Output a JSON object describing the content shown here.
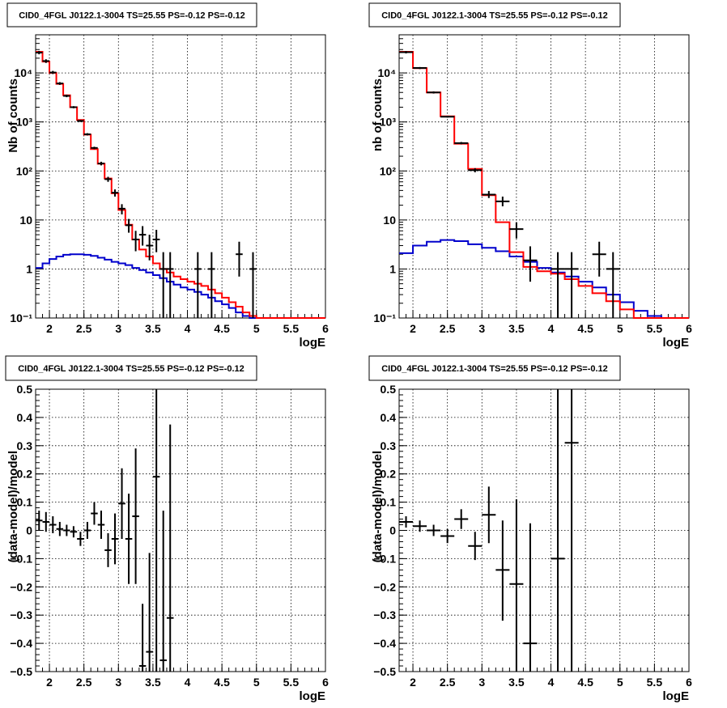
{
  "chart_data": [
    {
      "type": "step-histogram",
      "title": "CID0_4FGL J0122.1-3004 TS=25.55 PS=-0.12 PS=-0.12",
      "xlabel": "logE",
      "ylabel": "Nb of counts",
      "xlim": [
        1.8,
        6.0
      ],
      "ylim": [
        0.1,
        60000
      ],
      "yscale": "log",
      "x_ticks": [
        "2",
        "2.5",
        "3",
        "3.5",
        "4",
        "4.5",
        "5",
        "5.5",
        "6"
      ],
      "y_ticks": [
        "10⁻¹",
        "1",
        "10",
        "10²",
        "10³",
        "10⁴"
      ],
      "y_tick_values": [
        0.1,
        1,
        10,
        100,
        1000,
        10000
      ],
      "grid": true,
      "model_total": {
        "color": "#ff0000",
        "edges": [
          1.8,
          1.9,
          2.0,
          2.1,
          2.2,
          2.3,
          2.4,
          2.5,
          2.6,
          2.7,
          2.8,
          2.9,
          3.0,
          3.1,
          3.2,
          3.3,
          3.4,
          3.5,
          3.6,
          3.7,
          3.8,
          3.9,
          4.0,
          4.1,
          4.2,
          4.3,
          4.4,
          4.5,
          4.6,
          4.7,
          4.8,
          4.9,
          5.0,
          5.1,
          5.2,
          5.3,
          5.4,
          5.5,
          5.6,
          5.7,
          5.8,
          5.9,
          6.0
        ],
        "values": [
          27000,
          17000,
          10000,
          6000,
          3500,
          2000,
          1100,
          550,
          280,
          140,
          70,
          35,
          16,
          8,
          4,
          2.5,
          1.8,
          1.3,
          1.0,
          0.85,
          0.7,
          0.62,
          0.55,
          0.5,
          0.45,
          0.38,
          0.32,
          0.26,
          0.21,
          0.17,
          0.13,
          0.11,
          0.1,
          0.1,
          0.1,
          0.1,
          0.1,
          0.1,
          0.1,
          0.1,
          0.1,
          0.1
        ]
      },
      "model_source": {
        "color": "#0000cc",
        "edges": [
          1.8,
          1.9,
          2.0,
          2.1,
          2.2,
          2.3,
          2.4,
          2.5,
          2.6,
          2.7,
          2.8,
          2.9,
          3.0,
          3.1,
          3.2,
          3.3,
          3.4,
          3.5,
          3.6,
          3.7,
          3.8,
          3.9,
          4.0,
          4.1,
          4.2,
          4.3,
          4.4,
          4.5,
          4.6,
          4.7,
          4.8,
          4.9,
          5.0,
          5.1,
          5.2,
          5.3,
          5.4,
          5.5,
          5.6,
          5.7,
          5.8,
          5.9,
          6.0
        ],
        "values": [
          1.05,
          1.3,
          1.6,
          1.8,
          1.95,
          2.0,
          2.0,
          1.95,
          1.85,
          1.7,
          1.55,
          1.4,
          1.3,
          1.2,
          1.05,
          0.95,
          0.85,
          0.75,
          0.65,
          0.55,
          0.48,
          0.42,
          0.38,
          0.34,
          0.3,
          0.26,
          0.22,
          0.19,
          0.16,
          0.13,
          0.11,
          0.1,
          0.1,
          0.1,
          0.1,
          0.1,
          0.1,
          0.1,
          0.1,
          0.1,
          0.1,
          0.1
        ]
      },
      "data_points": [
        {
          "x": 1.85,
          "y": 26000,
          "ylo": 24000,
          "yhi": 28000
        },
        {
          "x": 1.95,
          "y": 17500,
          "ylo": 16000,
          "yhi": 19000
        },
        {
          "x": 2.05,
          "y": 10200,
          "ylo": 9500,
          "yhi": 11000
        },
        {
          "x": 2.15,
          "y": 6100,
          "ylo": 5700,
          "yhi": 6500
        },
        {
          "x": 2.25,
          "y": 3400,
          "ylo": 3200,
          "yhi": 3600
        },
        {
          "x": 2.35,
          "y": 2000,
          "ylo": 1900,
          "yhi": 2100
        },
        {
          "x": 2.45,
          "y": 1050,
          "ylo": 1000,
          "yhi": 1100
        },
        {
          "x": 2.55,
          "y": 560,
          "ylo": 530,
          "yhi": 590
        },
        {
          "x": 2.65,
          "y": 295,
          "ylo": 278,
          "yhi": 312
        },
        {
          "x": 2.75,
          "y": 142,
          "ylo": 130,
          "yhi": 154
        },
        {
          "x": 2.85,
          "y": 68,
          "ylo": 60,
          "yhi": 76
        },
        {
          "x": 2.95,
          "y": 36,
          "ylo": 30,
          "yhi": 42
        },
        {
          "x": 3.05,
          "y": 17,
          "ylo": 13,
          "yhi": 21
        },
        {
          "x": 3.15,
          "y": 7.8,
          "ylo": 5.5,
          "yhi": 10.5
        },
        {
          "x": 3.25,
          "y": 4.0,
          "ylo": 2.3,
          "yhi": 6.0
        },
        {
          "x": 3.35,
          "y": 5.0,
          "ylo": 3.0,
          "yhi": 7.5
        },
        {
          "x": 3.45,
          "y": 3.0,
          "ylo": 1.5,
          "yhi": 5.0
        },
        {
          "x": 3.55,
          "y": 4.0,
          "ylo": 2.2,
          "yhi": 6.3
        },
        {
          "x": 3.65,
          "y": 1.0,
          "ylo": 0.1,
          "yhi": 2.2
        },
        {
          "x": 3.75,
          "y": 1.0,
          "ylo": 0.1,
          "yhi": 2.2
        },
        {
          "x": 4.15,
          "y": 1.0,
          "ylo": 0.1,
          "yhi": 2.2
        },
        {
          "x": 4.35,
          "y": 1.0,
          "ylo": 0.1,
          "yhi": 2.2
        },
        {
          "x": 4.75,
          "y": 2.0,
          "ylo": 0.7,
          "yhi": 3.6
        },
        {
          "x": 4.95,
          "y": 1.0,
          "ylo": 0.1,
          "yhi": 2.2
        }
      ]
    },
    {
      "type": "step-histogram",
      "title": "CID0_4FGL J0122.1-3004 TS=25.55 PS=-0.12 PS=-0.12",
      "xlabel": "logE",
      "ylabel": "nb of counts",
      "xlim": [
        1.8,
        6.0
      ],
      "ylim": [
        0.1,
        60000
      ],
      "yscale": "log",
      "x_ticks": [
        "2",
        "2.5",
        "3",
        "3.5",
        "4",
        "4.5",
        "5",
        "5.5",
        "6"
      ],
      "y_ticks": [
        "10⁻¹",
        "1",
        "10",
        "10²",
        "10³",
        "10⁴"
      ],
      "y_tick_values": [
        0.1,
        1,
        10,
        100,
        1000,
        10000
      ],
      "grid": true,
      "model_total": {
        "color": "#ff0000",
        "edges": [
          1.8,
          2.0,
          2.2,
          2.4,
          2.6,
          2.8,
          3.0,
          3.2,
          3.4,
          3.6,
          3.8,
          4.0,
          4.2,
          4.4,
          4.6,
          4.8,
          5.0,
          5.2,
          5.4,
          5.6,
          5.8,
          6.0
        ],
        "values": [
          27000,
          12500,
          4000,
          1300,
          360,
          110,
          32,
          9,
          2.2,
          1.1,
          0.9,
          0.8,
          0.62,
          0.45,
          0.32,
          0.22,
          0.15,
          0.1,
          0.1,
          0.1,
          0.1
        ]
      },
      "model_source": {
        "color": "#0000cc",
        "edges": [
          1.8,
          2.0,
          2.2,
          2.4,
          2.6,
          2.8,
          3.0,
          3.2,
          3.4,
          3.6,
          3.8,
          4.0,
          4.2,
          4.4,
          4.6,
          4.8,
          5.0,
          5.2,
          5.4,
          5.6,
          5.8,
          6.0
        ],
        "values": [
          2.1,
          3.0,
          3.6,
          3.9,
          3.7,
          3.2,
          2.7,
          2.3,
          1.8,
          1.4,
          1.05,
          0.85,
          0.7,
          0.55,
          0.42,
          0.3,
          0.21,
          0.14,
          0.11,
          0.1,
          0.1
        ]
      },
      "data_points": [
        {
          "x": 1.9,
          "y": 26500,
          "ylo": 25000,
          "yhi": 28000
        },
        {
          "x": 2.1,
          "y": 12600,
          "ylo": 12000,
          "yhi": 13200
        },
        {
          "x": 2.3,
          "y": 4000,
          "ylo": 3800,
          "yhi": 4200
        },
        {
          "x": 2.5,
          "y": 1280,
          "ylo": 1230,
          "yhi": 1330
        },
        {
          "x": 2.7,
          "y": 370,
          "ylo": 350,
          "yhi": 390
        },
        {
          "x": 2.9,
          "y": 104,
          "ylo": 94,
          "yhi": 114
        },
        {
          "x": 3.1,
          "y": 33,
          "ylo": 28,
          "yhi": 39
        },
        {
          "x": 3.3,
          "y": 24,
          "ylo": 19,
          "yhi": 30
        },
        {
          "x": 3.5,
          "y": 6.5,
          "ylo": 4.2,
          "yhi": 9.0
        },
        {
          "x": 3.7,
          "y": 1.5,
          "ylo": 0.55,
          "yhi": 2.9
        },
        {
          "x": 4.1,
          "y": 1.0,
          "ylo": 0.1,
          "yhi": 2.2
        },
        {
          "x": 4.3,
          "y": 1.0,
          "ylo": 0.1,
          "yhi": 2.2
        },
        {
          "x": 4.7,
          "y": 2.0,
          "ylo": 0.7,
          "yhi": 3.6
        },
        {
          "x": 4.9,
          "y": 1.0,
          "ylo": 0.1,
          "yhi": 2.2
        }
      ]
    },
    {
      "type": "scatter",
      "title": "CID0_4FGL J0122.1-3004 TS=25.55 PS=-0.12 PS=-0.12",
      "xlabel": "logE",
      "ylabel": "(data-model)/model",
      "xlim": [
        1.8,
        6.0
      ],
      "ylim": [
        -0.5,
        0.5
      ],
      "x_ticks": [
        "2",
        "2.5",
        "3",
        "3.5",
        "4",
        "4.5",
        "5",
        "5.5",
        "6"
      ],
      "y_ticks": [
        "−0.5",
        "−0.4",
        "−0.3",
        "−0.2",
        "−0.1",
        "0",
        "0.1",
        "0.2",
        "0.3",
        "0.4",
        "0.5"
      ],
      "y_tick_values": [
        -0.5,
        -0.4,
        -0.3,
        -0.2,
        -0.1,
        0,
        0.1,
        0.2,
        0.3,
        0.4,
        0.5
      ],
      "grid": true,
      "data_points": [
        {
          "x": 1.85,
          "y": 0.035,
          "ylo": 0.0,
          "yhi": 0.07
        },
        {
          "x": 1.95,
          "y": 0.03,
          "ylo": -0.005,
          "yhi": 0.065
        },
        {
          "x": 2.05,
          "y": 0.02,
          "ylo": -0.01,
          "yhi": 0.05
        },
        {
          "x": 2.15,
          "y": 0.005,
          "ylo": -0.02,
          "yhi": 0.03
        },
        {
          "x": 2.25,
          "y": 0.0,
          "ylo": -0.02,
          "yhi": 0.02
        },
        {
          "x": 2.35,
          "y": -0.005,
          "ylo": -0.025,
          "yhi": 0.015
        },
        {
          "x": 2.45,
          "y": -0.03,
          "ylo": -0.055,
          "yhi": -0.005
        },
        {
          "x": 2.55,
          "y": 0.0,
          "ylo": -0.03,
          "yhi": 0.03
        },
        {
          "x": 2.65,
          "y": 0.06,
          "ylo": 0.02,
          "yhi": 0.1
        },
        {
          "x": 2.75,
          "y": 0.02,
          "ylo": -0.03,
          "yhi": 0.07
        },
        {
          "x": 2.85,
          "y": -0.07,
          "ylo": -0.13,
          "yhi": -0.01
        },
        {
          "x": 2.95,
          "y": -0.03,
          "ylo": -0.12,
          "yhi": 0.06
        },
        {
          "x": 3.05,
          "y": 0.095,
          "ylo": -0.03,
          "yhi": 0.22
        },
        {
          "x": 3.15,
          "y": -0.03,
          "ylo": -0.19,
          "yhi": 0.13
        },
        {
          "x": 3.25,
          "y": 0.05,
          "ylo": -0.19,
          "yhi": 0.29
        },
        {
          "x": 3.35,
          "y": -0.48,
          "ylo": -0.5,
          "yhi": -0.26
        },
        {
          "x": 3.45,
          "y": -0.43,
          "ylo": -0.5,
          "yhi": -0.08
        },
        {
          "x": 3.55,
          "y": 0.19,
          "ylo": -0.5,
          "yhi": 0.5
        },
        {
          "x": 3.65,
          "y": -0.46,
          "ylo": -0.5,
          "yhi": 0.07
        },
        {
          "x": 3.75,
          "y": -0.31,
          "ylo": -0.5,
          "yhi": 0.375
        }
      ]
    },
    {
      "type": "scatter",
      "title": "CID0_4FGL J0122.1-3004 TS=25.55 PS=-0.12 PS=-0.12",
      "xlabel": "logE",
      "ylabel": "(data-model)/model",
      "xlim": [
        1.8,
        6.0
      ],
      "ylim": [
        -0.5,
        0.5
      ],
      "x_ticks": [
        "2",
        "2.5",
        "3",
        "3.5",
        "4",
        "4.5",
        "5",
        "5.5",
        "6"
      ],
      "y_ticks": [
        "−0.5",
        "−0.4",
        "−0.3",
        "−0.2",
        "−0.1",
        "0",
        "0.1",
        "0.2",
        "0.3",
        "0.4",
        "0.5"
      ],
      "y_tick_values": [
        -0.5,
        -0.4,
        -0.3,
        -0.2,
        -0.1,
        0,
        0.1,
        0.2,
        0.3,
        0.4,
        0.5
      ],
      "grid": true,
      "data_points": [
        {
          "x": 1.9,
          "y": 0.03,
          "ylo": 0.01,
          "yhi": 0.05
        },
        {
          "x": 2.1,
          "y": 0.015,
          "ylo": -0.005,
          "yhi": 0.035
        },
        {
          "x": 2.3,
          "y": 0.0,
          "ylo": -0.02,
          "yhi": 0.02
        },
        {
          "x": 2.5,
          "y": -0.02,
          "ylo": -0.045,
          "yhi": 0.005
        },
        {
          "x": 2.7,
          "y": 0.04,
          "ylo": 0.005,
          "yhi": 0.075
        },
        {
          "x": 2.9,
          "y": -0.055,
          "ylo": -0.105,
          "yhi": -0.005
        },
        {
          "x": 3.1,
          "y": 0.055,
          "ylo": -0.045,
          "yhi": 0.155
        },
        {
          "x": 3.3,
          "y": -0.14,
          "ylo": -0.32,
          "yhi": 0.035
        },
        {
          "x": 3.5,
          "y": -0.19,
          "ylo": -0.5,
          "yhi": 0.11
        },
        {
          "x": 3.7,
          "y": -0.4,
          "ylo": -0.5,
          "yhi": 0.025
        },
        {
          "x": 4.1,
          "y": -0.1,
          "ylo": -0.5,
          "yhi": 0.5
        },
        {
          "x": 4.3,
          "y": 0.31,
          "ylo": -0.5,
          "yhi": 0.5
        }
      ]
    }
  ]
}
